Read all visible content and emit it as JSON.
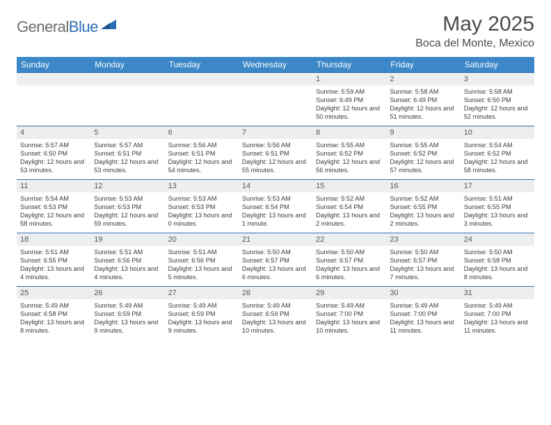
{
  "logo": {
    "textGray": "General",
    "textBlue": "Blue"
  },
  "title": "May 2025",
  "location": "Boca del Monte, Mexico",
  "colors": {
    "headerBg": "#3b87c8",
    "headerText": "#ffffff",
    "dayNumBg": "#eceef0",
    "rowBorder": "#2f6da8",
    "bodyText": "#3b3b3b",
    "logoGray": "#6b6b6b",
    "logoBlue": "#2a6fb5"
  },
  "dayNames": [
    "Sunday",
    "Monday",
    "Tuesday",
    "Wednesday",
    "Thursday",
    "Friday",
    "Saturday"
  ],
  "weeks": [
    [
      null,
      null,
      null,
      null,
      {
        "n": "1",
        "sr": "5:59 AM",
        "ss": "6:49 PM",
        "dl": "12 hours and 50 minutes."
      },
      {
        "n": "2",
        "sr": "5:58 AM",
        "ss": "6:49 PM",
        "dl": "12 hours and 51 minutes."
      },
      {
        "n": "3",
        "sr": "5:58 AM",
        "ss": "6:50 PM",
        "dl": "12 hours and 52 minutes."
      }
    ],
    [
      {
        "n": "4",
        "sr": "5:57 AM",
        "ss": "6:50 PM",
        "dl": "12 hours and 53 minutes."
      },
      {
        "n": "5",
        "sr": "5:57 AM",
        "ss": "6:51 PM",
        "dl": "12 hours and 53 minutes."
      },
      {
        "n": "6",
        "sr": "5:56 AM",
        "ss": "6:51 PM",
        "dl": "12 hours and 54 minutes."
      },
      {
        "n": "7",
        "sr": "5:56 AM",
        "ss": "6:51 PM",
        "dl": "12 hours and 55 minutes."
      },
      {
        "n": "8",
        "sr": "5:55 AM",
        "ss": "6:52 PM",
        "dl": "12 hours and 56 minutes."
      },
      {
        "n": "9",
        "sr": "5:55 AM",
        "ss": "6:52 PM",
        "dl": "12 hours and 57 minutes."
      },
      {
        "n": "10",
        "sr": "5:54 AM",
        "ss": "6:52 PM",
        "dl": "12 hours and 58 minutes."
      }
    ],
    [
      {
        "n": "11",
        "sr": "5:54 AM",
        "ss": "6:53 PM",
        "dl": "12 hours and 58 minutes."
      },
      {
        "n": "12",
        "sr": "5:53 AM",
        "ss": "6:53 PM",
        "dl": "12 hours and 59 minutes."
      },
      {
        "n": "13",
        "sr": "5:53 AM",
        "ss": "6:53 PM",
        "dl": "13 hours and 0 minutes."
      },
      {
        "n": "14",
        "sr": "5:53 AM",
        "ss": "6:54 PM",
        "dl": "13 hours and 1 minute."
      },
      {
        "n": "15",
        "sr": "5:52 AM",
        "ss": "6:54 PM",
        "dl": "13 hours and 2 minutes."
      },
      {
        "n": "16",
        "sr": "5:52 AM",
        "ss": "6:55 PM",
        "dl": "13 hours and 2 minutes."
      },
      {
        "n": "17",
        "sr": "5:51 AM",
        "ss": "6:55 PM",
        "dl": "13 hours and 3 minutes."
      }
    ],
    [
      {
        "n": "18",
        "sr": "5:51 AM",
        "ss": "6:55 PM",
        "dl": "13 hours and 4 minutes."
      },
      {
        "n": "19",
        "sr": "5:51 AM",
        "ss": "6:56 PM",
        "dl": "13 hours and 4 minutes."
      },
      {
        "n": "20",
        "sr": "5:51 AM",
        "ss": "6:56 PM",
        "dl": "13 hours and 5 minutes."
      },
      {
        "n": "21",
        "sr": "5:50 AM",
        "ss": "6:57 PM",
        "dl": "13 hours and 6 minutes."
      },
      {
        "n": "22",
        "sr": "5:50 AM",
        "ss": "6:57 PM",
        "dl": "13 hours and 6 minutes."
      },
      {
        "n": "23",
        "sr": "5:50 AM",
        "ss": "6:57 PM",
        "dl": "13 hours and 7 minutes."
      },
      {
        "n": "24",
        "sr": "5:50 AM",
        "ss": "6:58 PM",
        "dl": "13 hours and 8 minutes."
      }
    ],
    [
      {
        "n": "25",
        "sr": "5:49 AM",
        "ss": "6:58 PM",
        "dl": "13 hours and 8 minutes."
      },
      {
        "n": "26",
        "sr": "5:49 AM",
        "ss": "6:59 PM",
        "dl": "13 hours and 9 minutes."
      },
      {
        "n": "27",
        "sr": "5:49 AM",
        "ss": "6:59 PM",
        "dl": "13 hours and 9 minutes."
      },
      {
        "n": "28",
        "sr": "5:49 AM",
        "ss": "6:59 PM",
        "dl": "13 hours and 10 minutes."
      },
      {
        "n": "29",
        "sr": "5:49 AM",
        "ss": "7:00 PM",
        "dl": "13 hours and 10 minutes."
      },
      {
        "n": "30",
        "sr": "5:49 AM",
        "ss": "7:00 PM",
        "dl": "13 hours and 11 minutes."
      },
      {
        "n": "31",
        "sr": "5:49 AM",
        "ss": "7:00 PM",
        "dl": "13 hours and 11 minutes."
      }
    ]
  ],
  "labels": {
    "sunrise": "Sunrise:",
    "sunset": "Sunset:",
    "daylight": "Daylight:"
  }
}
